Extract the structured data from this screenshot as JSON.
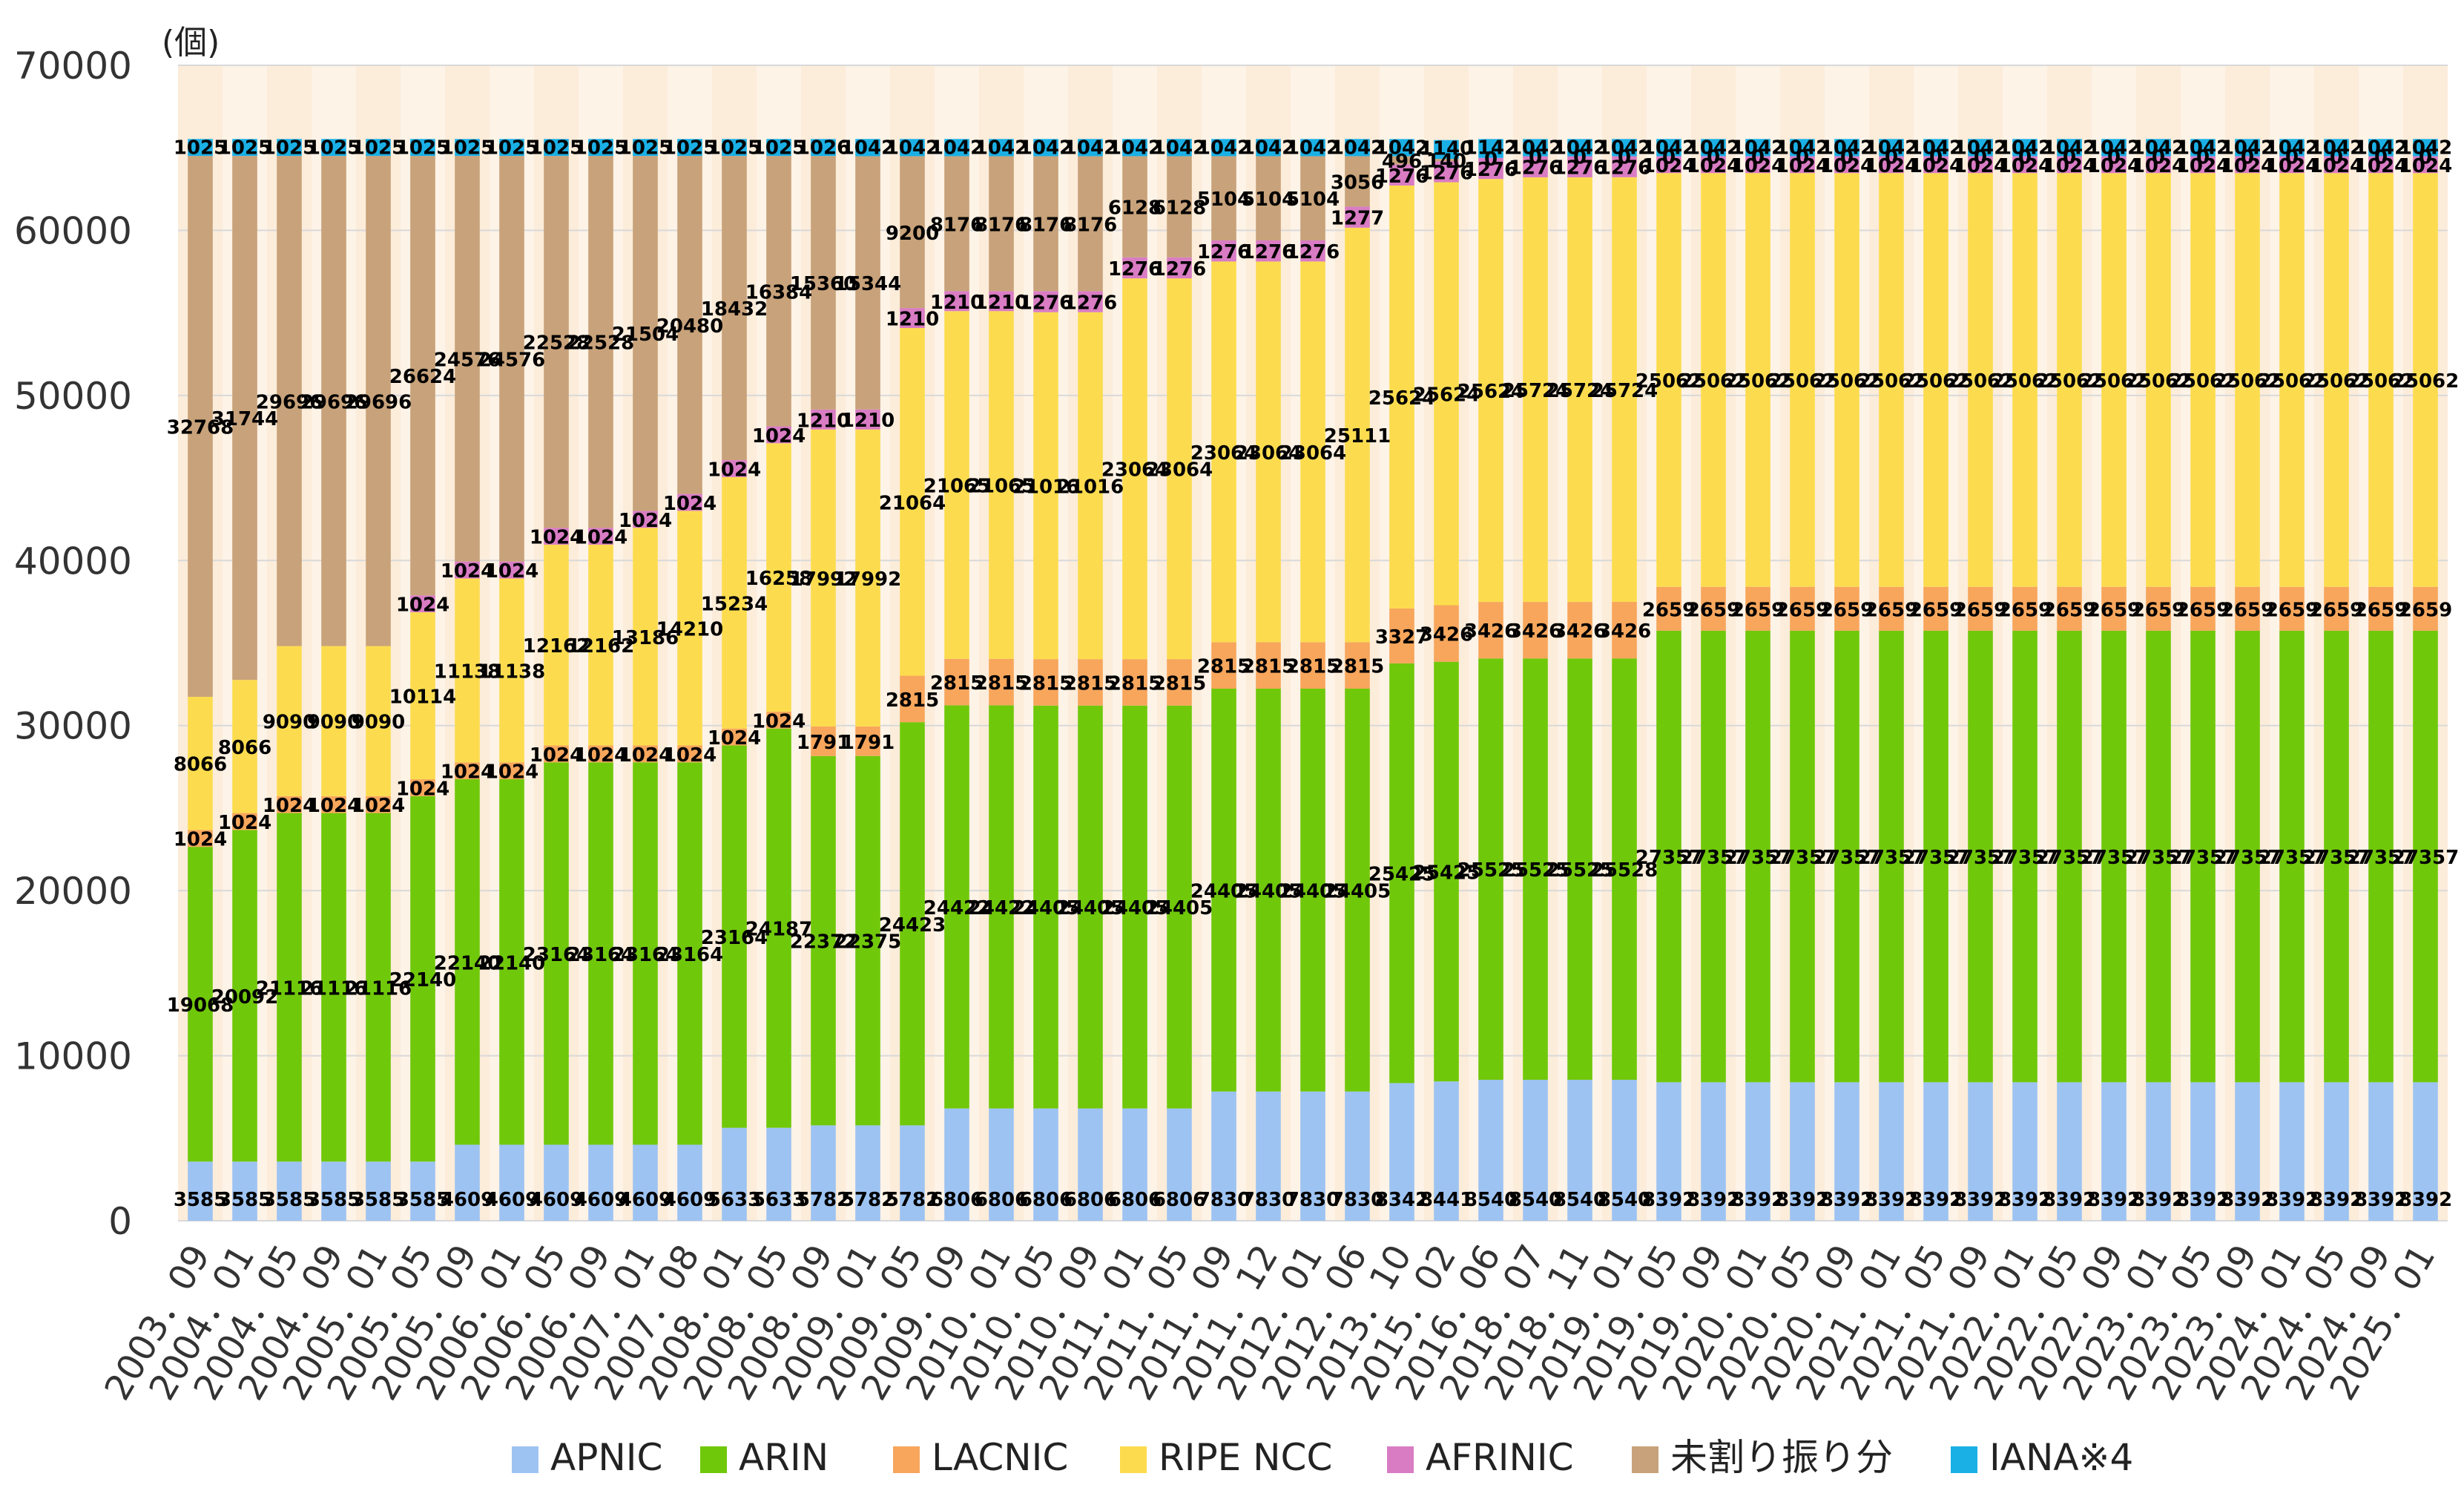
{
  "chart_data": {
    "type": "bar",
    "stacked": true,
    "unit_label": "(個)",
    "ylim": [
      0,
      70000
    ],
    "yticks": [
      0,
      10000,
      20000,
      30000,
      40000,
      50000,
      60000,
      70000
    ],
    "grid": true,
    "legend_position": "bottom",
    "categories": [
      "2003．09",
      "2004．01",
      "2004．05",
      "2004．09",
      "2005．01",
      "2005．05",
      "2005．09",
      "2006．01",
      "2006．05",
      "2006．09",
      "2007．01",
      "2007．08",
      "2008．01",
      "2008．05",
      "2008．09",
      "2009．01",
      "2009．05",
      "2009．09",
      "2010．01",
      "2010．05",
      "2010．09",
      "2011．01",
      "2011．05",
      "2011．09",
      "2011．12",
      "2012．01",
      "2012．06",
      "2013．10",
      "2015．02",
      "2016．06",
      "2018．07",
      "2018．11",
      "2019．01",
      "2019．05",
      "2019．09",
      "2020．01",
      "2020．05",
      "2020．09",
      "2021．01",
      "2021．05",
      "2021．09",
      "2022．01",
      "2022．05",
      "2022．09",
      "2023．01",
      "2023．05",
      "2023．09",
      "2024．01",
      "2024．05",
      "2024．09",
      "2025．01"
    ],
    "series": [
      {
        "name": "APNIC",
        "color": "#9DC3F2",
        "values": [
          3585,
          3585,
          3585,
          3585,
          3585,
          3585,
          4609,
          4609,
          4609,
          4609,
          4609,
          4609,
          5633,
          5633,
          5782,
          5782,
          5782,
          6806,
          6806,
          6806,
          6806,
          6806,
          6806,
          7830,
          7830,
          7830,
          7830,
          8342,
          8441,
          8540,
          8540,
          8540,
          8540,
          8392,
          8392,
          8392,
          8392,
          8392,
          8392,
          8392,
          8392,
          8392,
          8392,
          8392,
          8392,
          8392,
          8392,
          8392,
          8392,
          8392,
          8392
        ]
      },
      {
        "name": "ARIN",
        "color": "#70C80A",
        "values": [
          19068,
          20092,
          21116,
          21116,
          21116,
          22140,
          22140,
          22140,
          23164,
          23164,
          23164,
          23164,
          23164,
          24187,
          22372,
          22375,
          24423,
          24422,
          24422,
          24405,
          24405,
          24405,
          24405,
          24405,
          24405,
          24405,
          24405,
          25425,
          25425,
          25525,
          25525,
          25525,
          25528,
          27357,
          27357,
          27357,
          27357,
          27357,
          27357,
          27357,
          27357,
          27357,
          27357,
          27357,
          27357,
          27357,
          27357,
          27357,
          27357,
          27357,
          27357
        ]
      },
      {
        "name": "LACNIC",
        "color": "#F7A65C",
        "values": [
          1024,
          1024,
          1024,
          1024,
          1024,
          1024,
          1024,
          1024,
          1024,
          1024,
          1024,
          1024,
          1024,
          1024,
          1791,
          1791,
          2815,
          2815,
          2815,
          2815,
          2815,
          2815,
          2815,
          2815,
          2815,
          2815,
          2815,
          3327,
          3426,
          3426,
          3426,
          3426,
          3426,
          2659,
          2659,
          2659,
          2659,
          2659,
          2659,
          2659,
          2659,
          2659,
          2659,
          2659,
          2659,
          2659,
          2659,
          2659,
          2659,
          2659,
          2659
        ]
      },
      {
        "name": "RIPE NCC",
        "color": "#FCDC4E",
        "values": [
          8066,
          8066,
          9090,
          9090,
          9090,
          10114,
          11138,
          11138,
          12162,
          12162,
          13186,
          14210,
          15234,
          16258,
          17992,
          17992,
          21064,
          21065,
          21065,
          21016,
          21016,
          23064,
          23064,
          23064,
          23064,
          23064,
          25111,
          25624,
          25624,
          25624,
          25724,
          25724,
          25724,
          25062,
          25062,
          25062,
          25062,
          25062,
          25062,
          25062,
          25062,
          25062,
          25062,
          25062,
          25062,
          25062,
          25062,
          25062,
          25062,
          25062,
          25062
        ]
      },
      {
        "name": "AFRINIC",
        "color": "#D97CC4",
        "values": [
          0,
          0,
          0,
          0,
          0,
          1024,
          1024,
          1024,
          1024,
          1024,
          1024,
          1024,
          1024,
          1024,
          1210,
          1210,
          1210,
          1210,
          1210,
          1276,
          1276,
          1276,
          1276,
          1276,
          1276,
          1276,
          1277,
          1276,
          1276,
          1276,
          1276,
          1276,
          1276,
          1024,
          1024,
          1024,
          1024,
          1024,
          1024,
          1024,
          1024,
          1024,
          1024,
          1024,
          1024,
          1024,
          1024,
          1024,
          1024,
          1024,
          1024
        ]
      },
      {
        "name": "未割り振り分",
        "color": "#C8A27A",
        "values": [
          32768,
          31744,
          29696,
          29696,
          29696,
          26624,
          24576,
          24576,
          22528,
          22528,
          21504,
          20480,
          18432,
          16384,
          15360,
          15344,
          9200,
          8176,
          8176,
          8176,
          8176,
          6128,
          6128,
          5104,
          5104,
          5104,
          3056,
          496,
          140,
          0,
          0,
          0,
          0,
          0,
          0,
          0,
          0,
          0,
          0,
          0,
          0,
          0,
          0,
          0,
          0,
          0,
          0,
          0,
          0,
          0,
          0
        ]
      },
      {
        "name": "IANA※4",
        "color": "#1AB0E6",
        "values": [
          1025,
          1025,
          1025,
          1025,
          1025,
          1025,
          1025,
          1025,
          1025,
          1025,
          1025,
          1025,
          1025,
          1025,
          1026,
          1042,
          1042,
          1042,
          1042,
          1042,
          1042,
          1042,
          1042,
          1042,
          1042,
          1042,
          1042,
          1042,
          1140,
          1142,
          1042,
          1042,
          1042,
          1042,
          1042,
          1042,
          1042,
          1042,
          1042,
          1042,
          1042,
          1042,
          1042,
          1042,
          1042,
          1042,
          1042,
          1042,
          1042,
          1042,
          1042
        ]
      }
    ]
  }
}
